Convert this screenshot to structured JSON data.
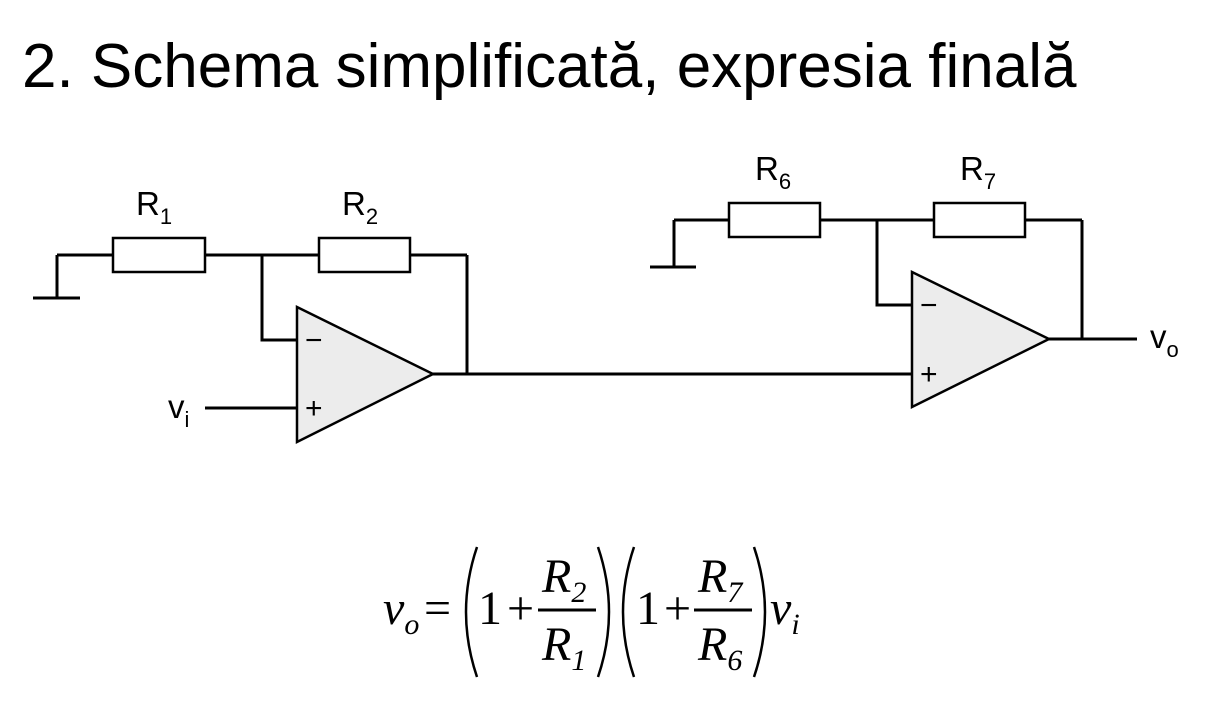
{
  "slide": {
    "title": "2. Schema simplificată, expresia finală"
  },
  "circuit": {
    "resistors": [
      {
        "id": "R1",
        "name": "R",
        "sub": "1"
      },
      {
        "id": "R2",
        "name": "R",
        "sub": "2"
      },
      {
        "id": "R6",
        "name": "R",
        "sub": "6"
      },
      {
        "id": "R7",
        "name": "R",
        "sub": "7"
      }
    ],
    "input_label": {
      "name": "v",
      "sub": "i"
    },
    "output_label": {
      "name": "v",
      "sub": "o"
    },
    "opamp_inverting_sign": "−",
    "opamp_noninverting_sign": "+"
  },
  "formula": {
    "lhs": "v",
    "lhs_sub": "o",
    "equals": "=",
    "one": "1",
    "plus": "+",
    "frac1_num": "R",
    "frac1_num_sub": "2",
    "frac1_den": "R",
    "frac1_den_sub": "1",
    "frac2_num": "R",
    "frac2_num_sub": "7",
    "frac2_den": "R",
    "frac2_den_sub": "6",
    "rhs": "v",
    "rhs_sub": "i"
  }
}
